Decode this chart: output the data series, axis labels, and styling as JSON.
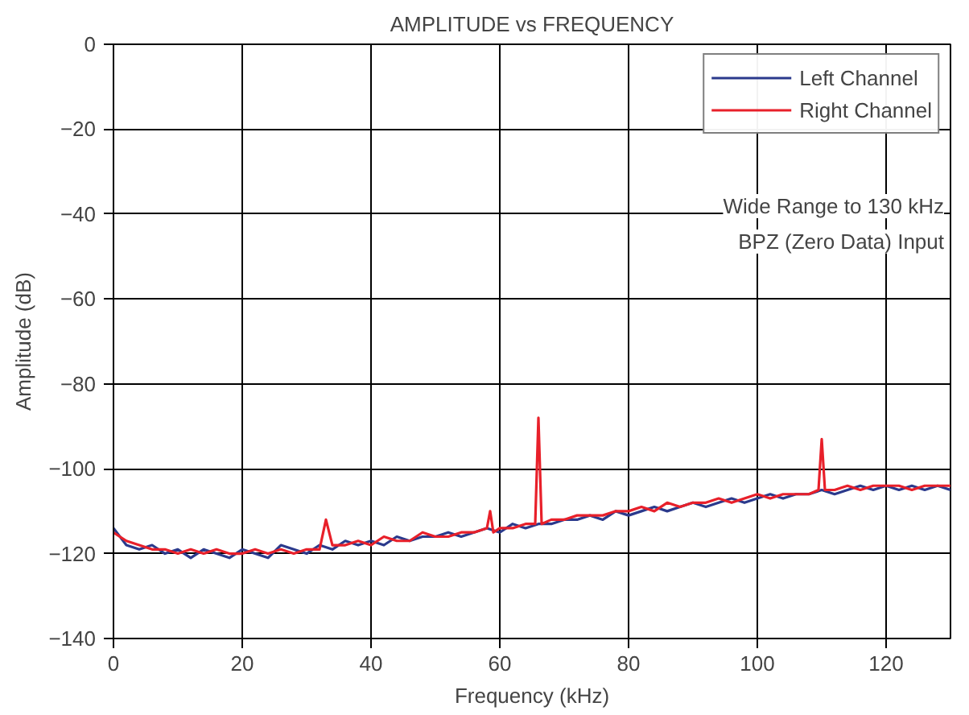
{
  "chart_data": {
    "type": "line",
    "title": "AMPLITUDE vs FREQUENCY",
    "xlabel": "Frequency (kHz)",
    "ylabel": "Amplitude (dB)",
    "xlim": [
      0,
      130
    ],
    "ylim": [
      -140,
      0
    ],
    "xticks": [
      0,
      20,
      40,
      60,
      80,
      100,
      120
    ],
    "yticks": [
      {
        "value": 0,
        "label": "0"
      },
      {
        "value": -20,
        "label": "−20"
      },
      {
        "value": -40,
        "label": "−40"
      },
      {
        "value": -60,
        "label": "−60"
      },
      {
        "value": -80,
        "label": "−80"
      },
      {
        "value": -100,
        "label": "−100"
      },
      {
        "value": -120,
        "label": "−120"
      },
      {
        "value": -140,
        "label": "−140"
      }
    ],
    "grid": true,
    "legend": "top right",
    "line_style": "solid",
    "marker": "none",
    "annotations": [
      "Wide Range to 130 kHz",
      "BPZ (Zero Data) Input"
    ],
    "series": [
      {
        "name": "Left Channel",
        "color": "#2b3a8c",
        "x": [
          0,
          2,
          4,
          6,
          8,
          10,
          12,
          14,
          16,
          18,
          20,
          22,
          24,
          26,
          28,
          30,
          32,
          34,
          36,
          38,
          40,
          42,
          44,
          46,
          48,
          50,
          52,
          54,
          56,
          58,
          60,
          62,
          64,
          66,
          68,
          70,
          72,
          74,
          76,
          78,
          80,
          82,
          84,
          86,
          88,
          90,
          92,
          94,
          96,
          98,
          100,
          102,
          104,
          106,
          108,
          110,
          112,
          114,
          116,
          118,
          120,
          122,
          124,
          126,
          128,
          130
        ],
        "values": [
          -114,
          -118,
          -119,
          -118,
          -120,
          -119,
          -121,
          -119,
          -120,
          -121,
          -119,
          -120,
          -121,
          -118,
          -119,
          -120,
          -118,
          -119,
          -117,
          -118,
          -117,
          -118,
          -116,
          -117,
          -116,
          -116,
          -115,
          -116,
          -115,
          -114,
          -115,
          -113,
          -114,
          -113,
          -113,
          -112,
          -112,
          -111,
          -112,
          -110,
          -111,
          -110,
          -109,
          -110,
          -109,
          -108,
          -109,
          -108,
          -107,
          -108,
          -107,
          -106,
          -107,
          -106,
          -106,
          -105,
          -106,
          -105,
          -104,
          -105,
          -104,
          -105,
          -104,
          -105,
          -104,
          -105
        ]
      },
      {
        "name": "Right Channel",
        "color": "#e8202a",
        "x": [
          0,
          2,
          4,
          6,
          8,
          10,
          12,
          14,
          16,
          18,
          20,
          22,
          24,
          26,
          28,
          30,
          32,
          33,
          34,
          36,
          38,
          40,
          42,
          44,
          46,
          48,
          50,
          52,
          54,
          56,
          58,
          58.5,
          59,
          60,
          62,
          64,
          65.5,
          66,
          66.5,
          68,
          70,
          72,
          74,
          76,
          78,
          80,
          82,
          84,
          86,
          88,
          90,
          92,
          94,
          96,
          98,
          100,
          102,
          104,
          106,
          108,
          109.5,
          110,
          110.5,
          112,
          114,
          116,
          118,
          120,
          122,
          124,
          126,
          128,
          130
        ],
        "values": [
          -115,
          -117,
          -118,
          -119,
          -119,
          -120,
          -119,
          -120,
          -119,
          -120,
          -120,
          -119,
          -120,
          -119,
          -120,
          -119,
          -119,
          -112,
          -118,
          -118,
          -117,
          -118,
          -116,
          -117,
          -117,
          -115,
          -116,
          -116,
          -115,
          -115,
          -114,
          -110,
          -115,
          -114,
          -114,
          -113,
          -113,
          -88,
          -113,
          -112,
          -112,
          -111,
          -111,
          -111,
          -110,
          -110,
          -109,
          -110,
          -108,
          -109,
          -108,
          -108,
          -107,
          -108,
          -107,
          -106,
          -107,
          -106,
          -106,
          -106,
          -105,
          -93,
          -105,
          -105,
          -104,
          -105,
          -104,
          -104,
          -104,
          -105,
          -104,
          -104,
          -104
        ]
      }
    ]
  }
}
